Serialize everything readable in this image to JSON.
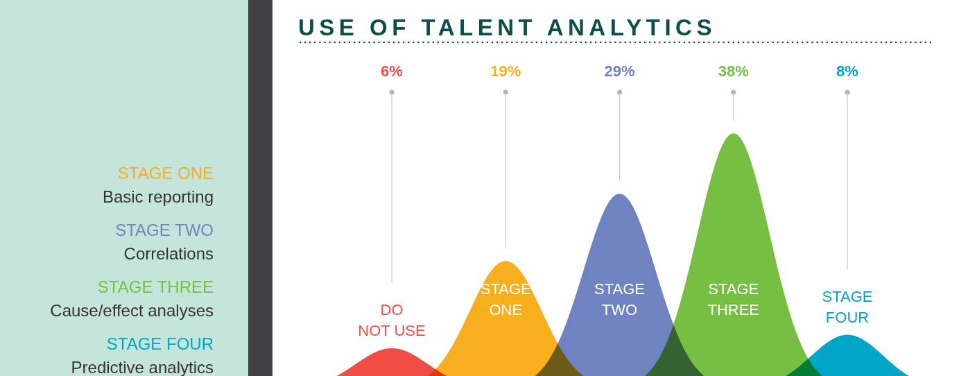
{
  "chart_data": {
    "type": "other",
    "title": "USE OF TALENT ANALYTICS",
    "categories": [
      "DO NOT USE",
      "STAGE ONE",
      "STAGE TWO",
      "STAGE THREE",
      "STAGE FOUR"
    ],
    "values": [
      6,
      19,
      29,
      38,
      8
    ],
    "colors": [
      "#f04e45",
      "#f7ae1f",
      "#6f83c0",
      "#77bf43",
      "#00a6c8"
    ],
    "value_labels": [
      "6%",
      "19%",
      "29%",
      "38%",
      "8%"
    ],
    "annotations": [
      "STAGE ONE",
      "Basic reporting",
      "STAGE TWO",
      "Correlations",
      "STAGE THREE",
      "Cause/effect analyses",
      "STAGE FOUR",
      "Predictive analytics"
    ]
  }
}
